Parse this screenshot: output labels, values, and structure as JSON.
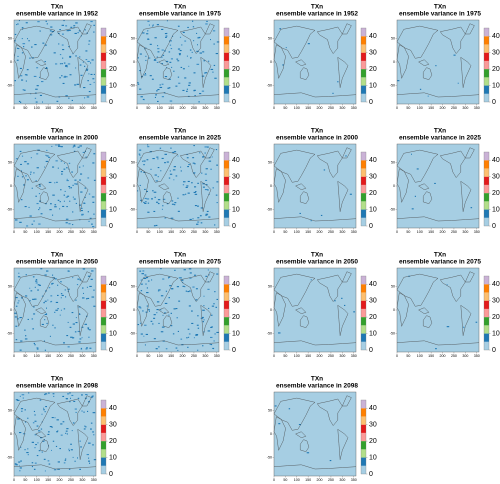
{
  "panels": [
    {
      "title": "TXn",
      "subtitle": "ensemble variance in 1952"
    },
    {
      "title": "TXn",
      "subtitle": "ensemble variance in 1975"
    },
    {
      "title": "TXn",
      "subtitle": "ensemble variance in 1952"
    },
    {
      "title": "TXn",
      "subtitle": "ensemble variance in 1975"
    },
    {
      "title": "TXn",
      "subtitle": "ensemble variance in 2000"
    },
    {
      "title": "TXn",
      "subtitle": "ensemble variance in 2025"
    },
    {
      "title": "TXn",
      "subtitle": "ensemble variance in 2000"
    },
    {
      "title": "TXn",
      "subtitle": "ensemble variance in 2025"
    },
    {
      "title": "TXn",
      "subtitle": "ensemble variance in 2050"
    },
    {
      "title": "TXn",
      "subtitle": "ensemble variance in 2075"
    },
    {
      "title": "TXn",
      "subtitle": "ensemble variance in 2050"
    },
    {
      "title": "TXn",
      "subtitle": "ensemble variance in 2075"
    },
    {
      "title": "TXn",
      "subtitle": "ensemble variance in 2098"
    },
    {
      "title": "TXn",
      "subtitle": "ensemble variance in 2098"
    }
  ],
  "axes": {
    "xlim": [
      0,
      360
    ],
    "ylim": [
      -90,
      90
    ],
    "xticks": [
      0,
      50,
      100,
      150,
      200,
      250,
      300,
      350
    ],
    "yticks": [
      -50,
      0,
      50
    ]
  },
  "colorbar": {
    "lim": [
      0,
      45
    ],
    "ticks": [
      0,
      10,
      20,
      30,
      40
    ],
    "colors": [
      "#a6cee3",
      "#1f78b4",
      "#b2df8a",
      "#33a02c",
      "#fb9a99",
      "#e31a1c",
      "#fdbf6f",
      "#ff7f00",
      "#cab2d6"
    ]
  }
}
